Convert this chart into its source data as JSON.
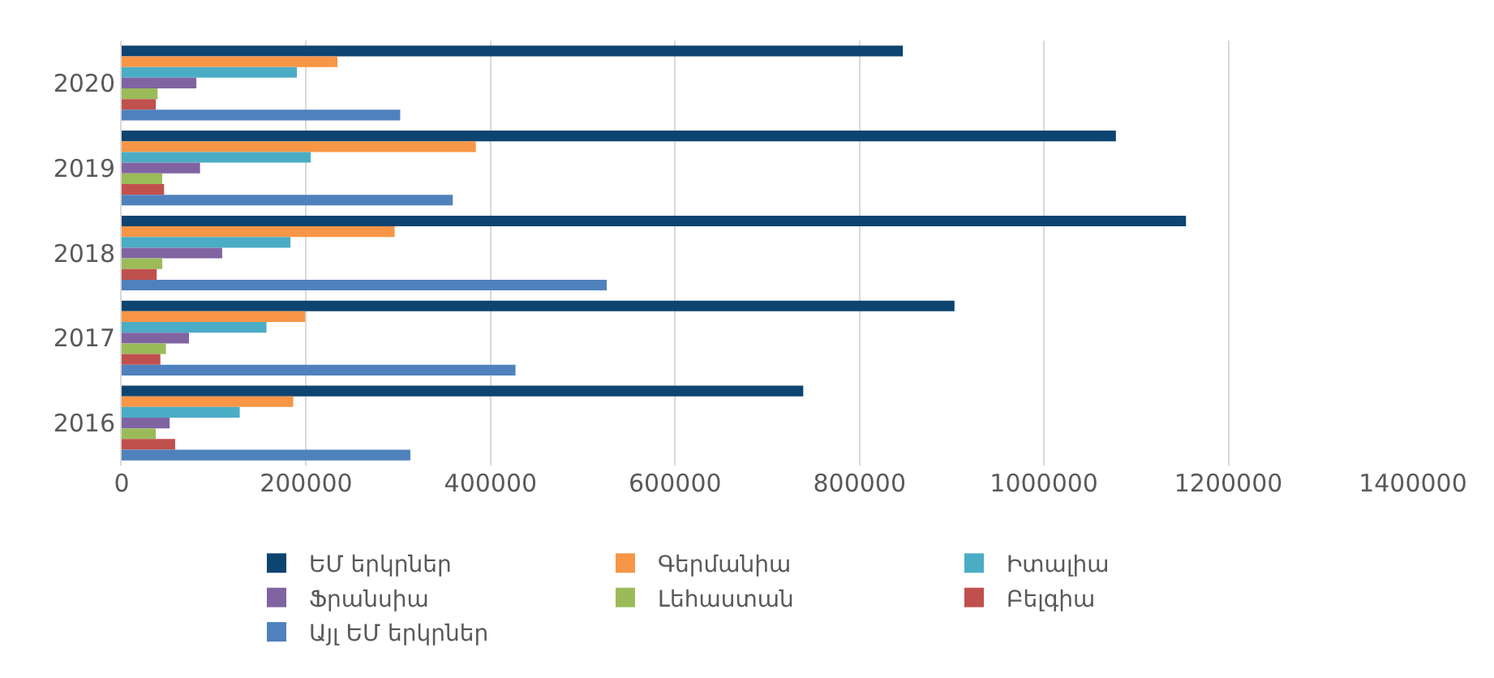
{
  "chart_data": {
    "type": "bar",
    "orientation": "horizontal",
    "categories": [
      "2020",
      "2019",
      "2018",
      "2017",
      "2016"
    ],
    "series": [
      {
        "name": "ԵՄ երկրներ",
        "color": "#0e4470",
        "values": [
          847000,
          1078000,
          1154000,
          903000,
          739000
        ]
      },
      {
        "name": "Գերմանիա",
        "color": "#f79646",
        "values": [
          234000,
          384000,
          296000,
          199000,
          186000
        ]
      },
      {
        "name": "Իտալիա",
        "color": "#4bacc6",
        "values": [
          190000,
          205000,
          183000,
          157000,
          128000
        ]
      },
      {
        "name": "Ֆրանսիա",
        "color": "#8064a2",
        "values": [
          81000,
          85000,
          109000,
          73000,
          52000
        ]
      },
      {
        "name": "Լեհաստան",
        "color": "#9bbb59",
        "values": [
          39000,
          44000,
          44000,
          48000,
          37000
        ]
      },
      {
        "name": "Բելգիա",
        "color": "#c0504d",
        "values": [
          37000,
          46000,
          38000,
          42000,
          58000
        ]
      },
      {
        "name": "Այլ ԵՄ երկրներ",
        "color": "#4f81bd",
        "values": [
          302000,
          359000,
          526000,
          427000,
          313000
        ]
      }
    ],
    "xlim": [
      0,
      1400000
    ],
    "xticks": [
      0,
      200000,
      400000,
      600000,
      800000,
      1000000,
      1200000,
      1400000
    ],
    "grid": "x",
    "legend": "bottom"
  }
}
